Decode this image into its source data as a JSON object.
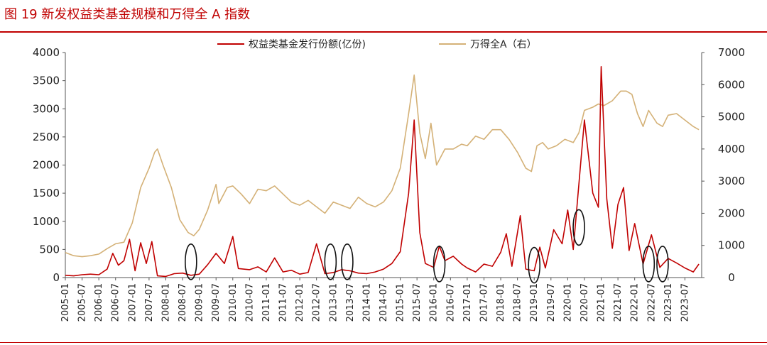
{
  "title": "图 19 新发权益类基金规模和万得全 A 指数",
  "colors": {
    "title": "#c00000",
    "issuance": "#c00000",
    "index": "#d4b177",
    "marker": "#111111"
  },
  "chart_data": {
    "type": "line",
    "title": "图 19 新发权益类基金规模和万得全 A 指数",
    "legend_placement": "top-center",
    "grid": false,
    "y_left": {
      "ylim": [
        0,
        4000
      ],
      "ticks": [
        "0",
        "500",
        "1000",
        "1500",
        "2000",
        "2500",
        "3000",
        "3500",
        "4000"
      ]
    },
    "y_right": {
      "ylim": [
        0,
        7000
      ],
      "ticks": [
        "0",
        "1000",
        "2000",
        "3000",
        "4000",
        "5000",
        "6000",
        "7000"
      ]
    },
    "xlim": [
      "2005-01",
      "2023-12"
    ],
    "x_ticks": [
      "2005-01",
      "2005-07",
      "2006-01",
      "2006-07",
      "2007-01",
      "2007-07",
      "2008-01",
      "2008-07",
      "2009-01",
      "2009-07",
      "2010-01",
      "2010-07",
      "2011-01",
      "2011-07",
      "2012-01",
      "2012-07",
      "2013-01",
      "2013-07",
      "2014-01",
      "2014-07",
      "2015-01",
      "2015-07",
      "2016-01",
      "2016-07",
      "2017-01",
      "2017-07",
      "2018-01",
      "2018-07",
      "2019-01",
      "2019-07",
      "2020-01",
      "2020-07",
      "2021-01",
      "2021-07",
      "2022-01",
      "2022-07",
      "2023-01",
      "2023-07"
    ],
    "series": [
      {
        "name": "权益类基金发行份额(亿份)",
        "axis": "left",
        "color": "#c00000",
        "points": [
          [
            "2005-01",
            40
          ],
          [
            "2005-04",
            30
          ],
          [
            "2005-07",
            50
          ],
          [
            "2005-10",
            60
          ],
          [
            "2006-01",
            50
          ],
          [
            "2006-04",
            150
          ],
          [
            "2006-06",
            430
          ],
          [
            "2006-08",
            220
          ],
          [
            "2006-10",
            300
          ],
          [
            "2006-12",
            680
          ],
          [
            "2007-02",
            120
          ],
          [
            "2007-04",
            620
          ],
          [
            "2007-06",
            250
          ],
          [
            "2007-08",
            640
          ],
          [
            "2007-10",
            30
          ],
          [
            "2008-01",
            20
          ],
          [
            "2008-04",
            70
          ],
          [
            "2008-07",
            80
          ],
          [
            "2008-10",
            40
          ],
          [
            "2009-01",
            60
          ],
          [
            "2009-04",
            230
          ],
          [
            "2009-07",
            430
          ],
          [
            "2009-10",
            250
          ],
          [
            "2010-01",
            730
          ],
          [
            "2010-03",
            160
          ],
          [
            "2010-07",
            140
          ],
          [
            "2010-10",
            190
          ],
          [
            "2011-01",
            100
          ],
          [
            "2011-04",
            350
          ],
          [
            "2011-07",
            100
          ],
          [
            "2011-10",
            130
          ],
          [
            "2012-01",
            60
          ],
          [
            "2012-04",
            90
          ],
          [
            "2012-07",
            600
          ],
          [
            "2012-10",
            70
          ],
          [
            "2013-01",
            90
          ],
          [
            "2013-04",
            140
          ],
          [
            "2013-07",
            120
          ],
          [
            "2013-10",
            80
          ],
          [
            "2014-01",
            70
          ],
          [
            "2014-04",
            100
          ],
          [
            "2014-07",
            150
          ],
          [
            "2014-10",
            250
          ],
          [
            "2015-01",
            460
          ],
          [
            "2015-04",
            1500
          ],
          [
            "2015-06",
            2800
          ],
          [
            "2015-08",
            800
          ],
          [
            "2015-10",
            250
          ],
          [
            "2016-01",
            180
          ],
          [
            "2016-03",
            560
          ],
          [
            "2016-05",
            300
          ],
          [
            "2016-08",
            380
          ],
          [
            "2016-11",
            240
          ],
          [
            "2017-01",
            170
          ],
          [
            "2017-04",
            100
          ],
          [
            "2017-07",
            240
          ],
          [
            "2017-10",
            200
          ],
          [
            "2018-01",
            450
          ],
          [
            "2018-03",
            780
          ],
          [
            "2018-05",
            200
          ],
          [
            "2018-08",
            1100
          ],
          [
            "2018-10",
            150
          ],
          [
            "2019-01",
            120
          ],
          [
            "2019-03",
            540
          ],
          [
            "2019-05",
            170
          ],
          [
            "2019-08",
            850
          ],
          [
            "2019-11",
            600
          ],
          [
            "2020-01",
            1200
          ],
          [
            "2020-03",
            500
          ],
          [
            "2020-07",
            2800
          ],
          [
            "2020-10",
            1500
          ],
          [
            "2020-12",
            1250
          ],
          [
            "2021-01",
            3750
          ],
          [
            "2021-03",
            1400
          ],
          [
            "2021-05",
            520
          ],
          [
            "2021-07",
            1300
          ],
          [
            "2021-09",
            1600
          ],
          [
            "2021-11",
            480
          ],
          [
            "2022-01",
            960
          ],
          [
            "2022-04",
            240
          ],
          [
            "2022-07",
            760
          ],
          [
            "2022-10",
            180
          ],
          [
            "2023-01",
            340
          ],
          [
            "2023-04",
            260
          ],
          [
            "2023-07",
            170
          ],
          [
            "2023-10",
            100
          ],
          [
            "2023-12",
            240
          ]
        ]
      },
      {
        "name": "万得全A（右）",
        "axis": "right",
        "color": "#d4b177",
        "points": [
          [
            "2005-01",
            780
          ],
          [
            "2005-04",
            680
          ],
          [
            "2005-07",
            650
          ],
          [
            "2005-10",
            680
          ],
          [
            "2006-01",
            730
          ],
          [
            "2006-04",
            900
          ],
          [
            "2006-07",
            1050
          ],
          [
            "2006-10",
            1100
          ],
          [
            "2007-01",
            1700
          ],
          [
            "2007-04",
            2800
          ],
          [
            "2007-07",
            3400
          ],
          [
            "2007-09",
            3900
          ],
          [
            "2007-10",
            4000
          ],
          [
            "2007-12",
            3500
          ],
          [
            "2008-03",
            2800
          ],
          [
            "2008-06",
            1800
          ],
          [
            "2008-09",
            1400
          ],
          [
            "2008-11",
            1300
          ],
          [
            "2009-01",
            1500
          ],
          [
            "2009-04",
            2100
          ],
          [
            "2009-07",
            2900
          ],
          [
            "2009-08",
            2300
          ],
          [
            "2009-11",
            2800
          ],
          [
            "2010-01",
            2850
          ],
          [
            "2010-04",
            2600
          ],
          [
            "2010-07",
            2300
          ],
          [
            "2010-10",
            2750
          ],
          [
            "2011-01",
            2700
          ],
          [
            "2011-04",
            2850
          ],
          [
            "2011-07",
            2600
          ],
          [
            "2011-10",
            2350
          ],
          [
            "2012-01",
            2250
          ],
          [
            "2012-04",
            2400
          ],
          [
            "2012-07",
            2200
          ],
          [
            "2012-10",
            2000
          ],
          [
            "2013-01",
            2350
          ],
          [
            "2013-04",
            2250
          ],
          [
            "2013-07",
            2150
          ],
          [
            "2013-10",
            2500
          ],
          [
            "2014-01",
            2300
          ],
          [
            "2014-04",
            2200
          ],
          [
            "2014-07",
            2350
          ],
          [
            "2014-10",
            2700
          ],
          [
            "2015-01",
            3400
          ],
          [
            "2015-04",
            5100
          ],
          [
            "2015-06",
            6300
          ],
          [
            "2015-08",
            4500
          ],
          [
            "2015-10",
            3700
          ],
          [
            "2015-12",
            4800
          ],
          [
            "2016-02",
            3500
          ],
          [
            "2016-05",
            4000
          ],
          [
            "2016-08",
            4000
          ],
          [
            "2016-11",
            4150
          ],
          [
            "2017-01",
            4100
          ],
          [
            "2017-04",
            4400
          ],
          [
            "2017-07",
            4300
          ],
          [
            "2017-10",
            4600
          ],
          [
            "2018-01",
            4600
          ],
          [
            "2018-04",
            4300
          ],
          [
            "2018-07",
            3900
          ],
          [
            "2018-10",
            3400
          ],
          [
            "2018-12",
            3300
          ],
          [
            "2019-02",
            4100
          ],
          [
            "2019-04",
            4200
          ],
          [
            "2019-06",
            4000
          ],
          [
            "2019-09",
            4100
          ],
          [
            "2019-12",
            4300
          ],
          [
            "2020-03",
            4200
          ],
          [
            "2020-05",
            4500
          ],
          [
            "2020-07",
            5200
          ],
          [
            "2020-10",
            5300
          ],
          [
            "2020-12",
            5400
          ],
          [
            "2021-02",
            5350
          ],
          [
            "2021-05",
            5500
          ],
          [
            "2021-08",
            5800
          ],
          [
            "2021-10",
            5800
          ],
          [
            "2021-12",
            5700
          ],
          [
            "2022-02",
            5100
          ],
          [
            "2022-04",
            4700
          ],
          [
            "2022-06",
            5200
          ],
          [
            "2022-09",
            4800
          ],
          [
            "2022-11",
            4700
          ],
          [
            "2023-01",
            5050
          ],
          [
            "2023-04",
            5100
          ],
          [
            "2023-07",
            4900
          ],
          [
            "2023-10",
            4700
          ],
          [
            "2023-12",
            4600
          ]
        ]
      }
    ],
    "annotations": [
      {
        "shape": "ellipse",
        "x": "2008-10",
        "y_left": 280
      },
      {
        "shape": "ellipse",
        "x": "2012-12",
        "y_left": 280
      },
      {
        "shape": "ellipse",
        "x": "2013-06",
        "y_left": 280
      },
      {
        "shape": "ellipse",
        "x": "2016-03",
        "y_left": 240
      },
      {
        "shape": "ellipse",
        "x": "2019-01",
        "y_left": 220
      },
      {
        "shape": "ellipse",
        "x": "2020-05",
        "y_left": 890
      },
      {
        "shape": "ellipse",
        "x": "2022-06",
        "y_left": 240
      },
      {
        "shape": "ellipse",
        "x": "2022-11",
        "y_left": 240
      }
    ]
  }
}
